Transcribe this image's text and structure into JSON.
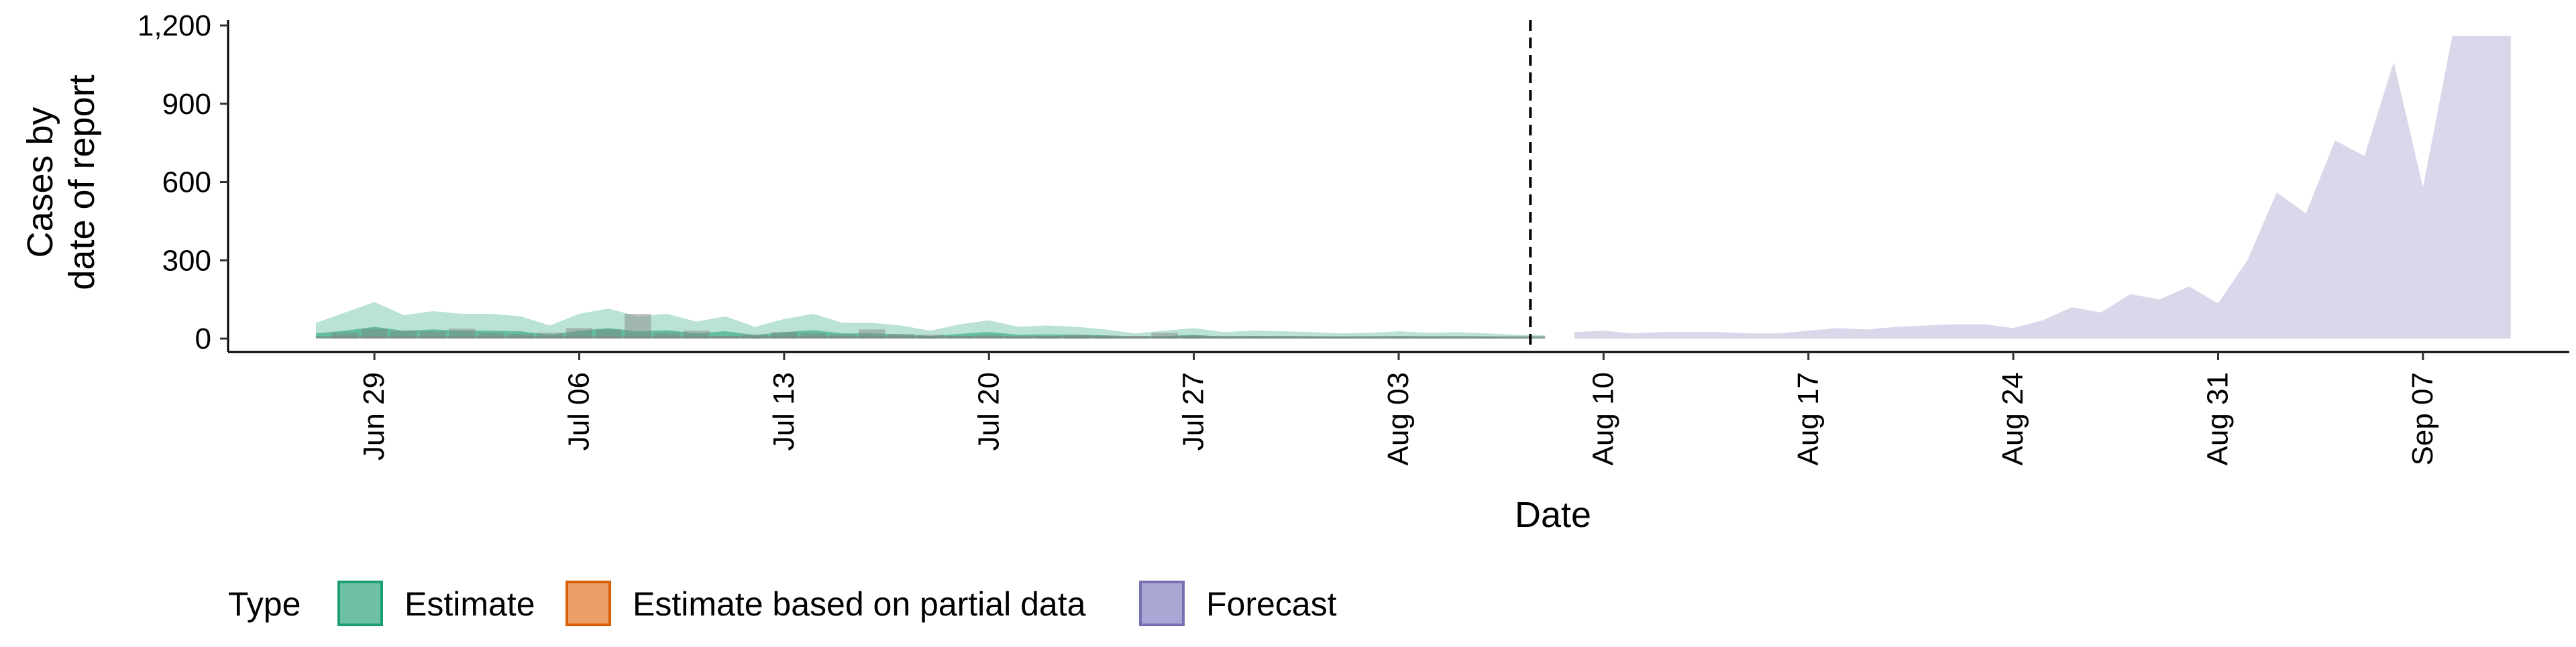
{
  "chart_data": {
    "type": "area",
    "title": "",
    "xlabel": "Date",
    "ylabel_lines": [
      "Cases by",
      "date of report"
    ],
    "ylim": [
      0,
      1200
    ],
    "yticks": [
      0,
      300,
      600,
      900,
      1200
    ],
    "ytick_labels": [
      "0",
      "300",
      "600",
      "900",
      "1,200"
    ],
    "x_start": "2020-06-25",
    "xlim": [
      "2020-06-24",
      "2020-09-12"
    ],
    "xticks": [
      "2020-06-29",
      "2020-07-06",
      "2020-07-13",
      "2020-07-20",
      "2020-07-27",
      "2020-08-03",
      "2020-08-10",
      "2020-08-17",
      "2020-08-24",
      "2020-08-31",
      "2020-09-07"
    ],
    "xtick_labels": [
      "Jun 29",
      "Jul 06",
      "Jul 13",
      "Jul 20",
      "Jul 27",
      "Aug 03",
      "Aug 10",
      "Aug 17",
      "Aug 24",
      "Aug 31",
      "Sep 07"
    ],
    "forecast_start": "2020-08-08",
    "grid": false,
    "legend_position": "bottom",
    "colors": {
      "estimate": "#1b9e77",
      "partial": "#d95f02",
      "forecast": "#7570b3",
      "observed": "#808080",
      "divider": "#000000"
    },
    "legend": {
      "title": "Type",
      "items": [
        {
          "name": "Estimate",
          "fill": "#6fc1a6",
          "border": "#1b9e77"
        },
        {
          "name": "Estimate based on partial data",
          "fill": "#ec9f66",
          "border": "#d95f02"
        },
        {
          "name": "Forecast",
          "fill": "#aaa7d4",
          "border": "#7570b3"
        }
      ]
    },
    "series": [
      {
        "name": "Estimate",
        "start": "2020-06-27",
        "upper": [
          60,
          100,
          140,
          90,
          105,
          95,
          95,
          85,
          50,
          95,
          115,
          85,
          95,
          65,
          85,
          45,
          75,
          95,
          60,
          60,
          50,
          30,
          55,
          70,
          45,
          50,
          45,
          35,
          20,
          30,
          40,
          25,
          30,
          28,
          25,
          20,
          22,
          28,
          22,
          25,
          20,
          15,
          12
        ],
        "lower": [
          0,
          0,
          0,
          0,
          0,
          0,
          0,
          0,
          0,
          0,
          0,
          0,
          0,
          0,
          0,
          0,
          0,
          0,
          0,
          0,
          0,
          0,
          0,
          0,
          0,
          0,
          0,
          0,
          0,
          0,
          0,
          0,
          0,
          0,
          0,
          0,
          0,
          0,
          0,
          0,
          0,
          0,
          0
        ],
        "inner_upper": [
          20,
          30,
          45,
          30,
          35,
          30,
          30,
          28,
          15,
          30,
          40,
          28,
          32,
          20,
          28,
          14,
          25,
          32,
          20,
          20,
          16,
          10,
          18,
          25,
          15,
          16,
          15,
          12,
          6,
          10,
          14,
          8,
          10,
          9,
          8,
          6,
          7,
          9,
          7,
          8,
          6,
          5,
          4
        ],
        "inner_lower": [
          2,
          3,
          4,
          3,
          3,
          3,
          3,
          3,
          2,
          3,
          4,
          3,
          3,
          2,
          3,
          1,
          2,
          3,
          2,
          2,
          2,
          1,
          2,
          2,
          1,
          1,
          1,
          1,
          1,
          1,
          1,
          1,
          1,
          1,
          1,
          1,
          1,
          1,
          1,
          1,
          1,
          1,
          1
        ]
      },
      {
        "name": "Forecast",
        "start": "2020-08-09",
        "upper": [
          25,
          30,
          20,
          25,
          25,
          25,
          20,
          20,
          30,
          40,
          35,
          45,
          50,
          55,
          55,
          40,
          70,
          120,
          100,
          170,
          150,
          200,
          135,
          300,
          560,
          480,
          760,
          700,
          1060,
          580,
          1160,
          1160,
          1160
        ],
        "lower": [
          0,
          0,
          0,
          0,
          0,
          0,
          0,
          0,
          0,
          0,
          0,
          0,
          0,
          0,
          0,
          0,
          0,
          0,
          0,
          0,
          0,
          0,
          0,
          0,
          0,
          0,
          0,
          0,
          0,
          0,
          0,
          0,
          0
        ]
      },
      {
        "name": "Observed",
        "start": "2020-06-28",
        "values": [
          22,
          38,
          30,
          28,
          38,
          22,
          18,
          22,
          40,
          35,
          95,
          22,
          30,
          10,
          15,
          25,
          20,
          15,
          35,
          18,
          15,
          10,
          12,
          8,
          10,
          14,
          12,
          10,
          22,
          12,
          8,
          6,
          8,
          6,
          5,
          4,
          5,
          4,
          3,
          4,
          3
        ]
      }
    ]
  }
}
